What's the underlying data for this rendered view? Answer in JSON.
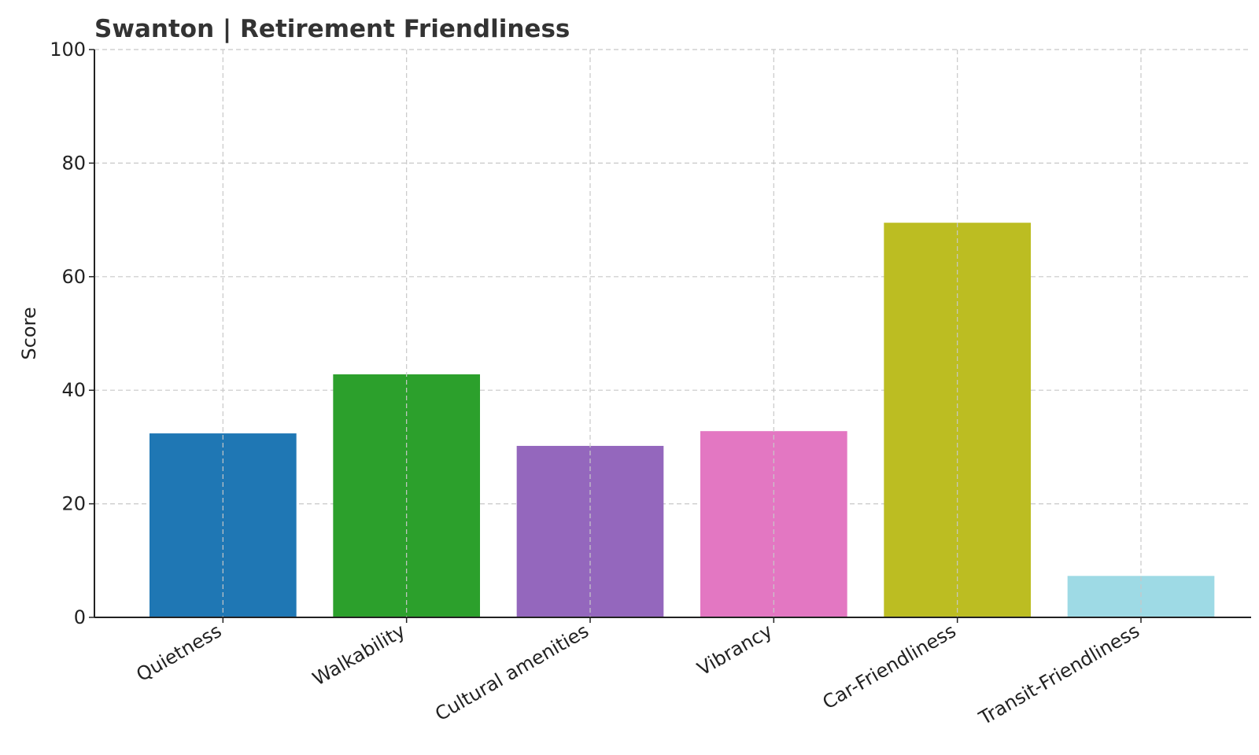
{
  "chart_data": {
    "type": "bar",
    "title": "Swanton | Retirement Friendliness",
    "xlabel": "",
    "ylabel": "Score",
    "ylim": [
      0,
      100
    ],
    "yticks": [
      0,
      20,
      40,
      60,
      80,
      100
    ],
    "grid": true,
    "categories": [
      "Quietness",
      "Walkability",
      "Cultural amenities",
      "Vibrancy",
      "Car-Friendliness",
      "Transit-Friendliness"
    ],
    "values": [
      32.4,
      42.8,
      30.2,
      32.8,
      69.5,
      7.3
    ],
    "colors": [
      "#1f77b4",
      "#2ca02c",
      "#9467bd",
      "#e377c2",
      "#bcbd22",
      "#9edae5"
    ]
  }
}
